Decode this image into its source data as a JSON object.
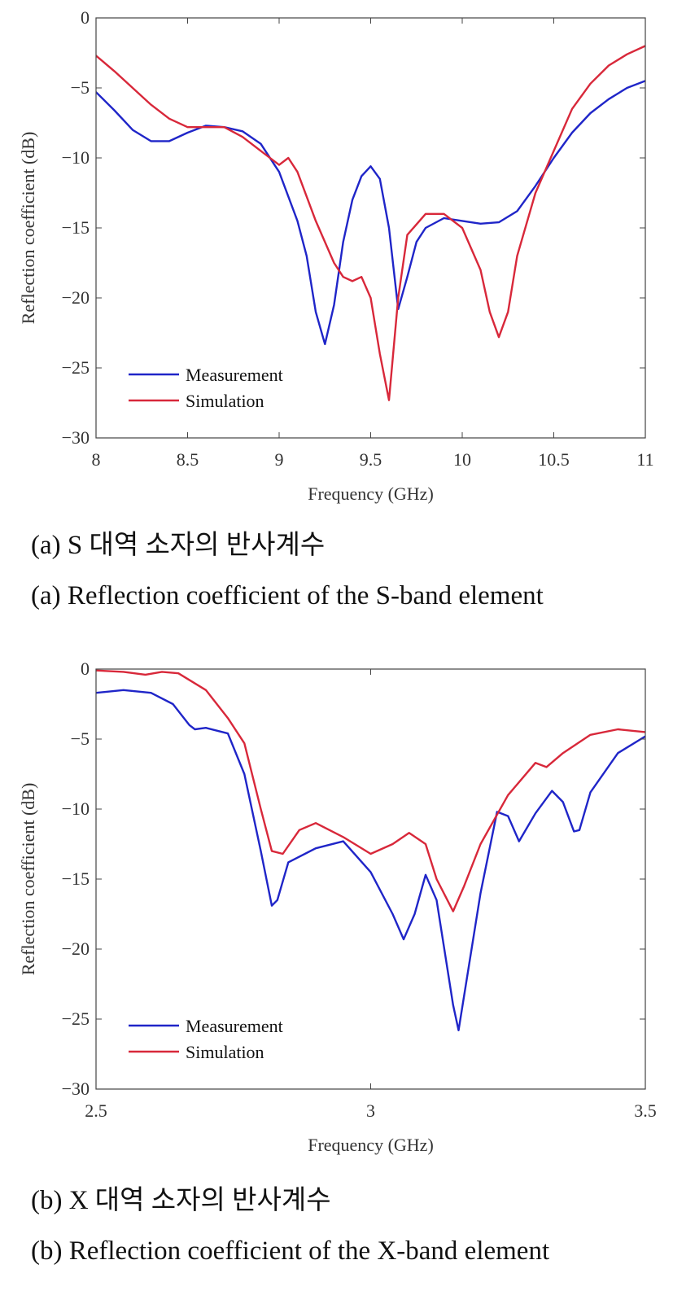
{
  "colors": {
    "measurement": "#1f25c8",
    "simulation": "#d8283a",
    "axis": "#444444"
  },
  "captions": {
    "a_ko": "(a) S 대역 소자의 반사계수",
    "a_en": "(a) Reflection coefficient of the S-band element",
    "b_ko": "(b) X 대역 소자의 반사계수",
    "b_en": "(b) Reflection coefficient of the X-band element"
  },
  "chart_data": [
    {
      "type": "line",
      "xlabel": "Frequency (GHz)",
      "ylabel": "Reflection coefficient (dB)",
      "xlim": [
        8,
        11
      ],
      "ylim": [
        -30,
        0
      ],
      "xticks": [
        8,
        8.5,
        9,
        9.5,
        10,
        10.5,
        11
      ],
      "xtick_labels": [
        "8",
        "8.5",
        "9",
        "9.5",
        "10",
        "10.5",
        "11"
      ],
      "yticks": [
        0,
        -5,
        -10,
        -15,
        -20,
        -25,
        -30
      ],
      "ytick_labels": [
        "0",
        "−5",
        "−10",
        "−15",
        "−20",
        "−25",
        "−30"
      ],
      "grid": false,
      "legend_position": "bottom-left",
      "series": [
        {
          "name": "Measurement",
          "x": [
            8.0,
            8.1,
            8.2,
            8.3,
            8.4,
            8.5,
            8.6,
            8.7,
            8.8,
            8.9,
            9.0,
            9.1,
            9.15,
            9.2,
            9.25,
            9.3,
            9.35,
            9.4,
            9.45,
            9.5,
            9.55,
            9.6,
            9.65,
            9.7,
            9.75,
            9.8,
            9.9,
            10.0,
            10.1,
            10.2,
            10.3,
            10.4,
            10.5,
            10.6,
            10.7,
            10.8,
            10.9,
            11.0
          ],
          "y": [
            -5.3,
            -6.6,
            -8.0,
            -8.8,
            -8.8,
            -8.2,
            -7.7,
            -7.8,
            -8.1,
            -9.0,
            -11.0,
            -14.5,
            -17.0,
            -21.0,
            -23.3,
            -20.5,
            -16.0,
            -13.0,
            -11.3,
            -10.6,
            -11.5,
            -15.0,
            -20.8,
            -18.5,
            -16.0,
            -15.0,
            -14.3,
            -14.5,
            -14.7,
            -14.6,
            -13.8,
            -12.0,
            -10.0,
            -8.2,
            -6.8,
            -5.8,
            -5.0,
            -4.5
          ]
        },
        {
          "name": "Simulation",
          "x": [
            8.0,
            8.1,
            8.2,
            8.3,
            8.4,
            8.5,
            8.6,
            8.7,
            8.8,
            8.9,
            9.0,
            9.05,
            9.1,
            9.2,
            9.3,
            9.35,
            9.4,
            9.45,
            9.5,
            9.55,
            9.6,
            9.65,
            9.7,
            9.8,
            9.9,
            10.0,
            10.1,
            10.15,
            10.2,
            10.25,
            10.3,
            10.4,
            10.5,
            10.6,
            10.7,
            10.8,
            10.9,
            11.0
          ],
          "y": [
            -2.7,
            -3.8,
            -5.0,
            -6.2,
            -7.2,
            -7.8,
            -7.8,
            -7.8,
            -8.5,
            -9.5,
            -10.5,
            -10.0,
            -11.0,
            -14.5,
            -17.5,
            -18.5,
            -18.8,
            -18.5,
            -20.0,
            -24.0,
            -27.3,
            -20.0,
            -15.5,
            -14.0,
            -14.0,
            -15.0,
            -18.0,
            -21.0,
            -22.8,
            -21.0,
            -17.0,
            -12.5,
            -9.5,
            -6.5,
            -4.7,
            -3.4,
            -2.6,
            -2.0
          ]
        }
      ]
    },
    {
      "type": "line",
      "xlabel": "Frequency (GHz)",
      "ylabel": "Reflection coefficient (dB)",
      "xlim": [
        2.5,
        3.5
      ],
      "ylim": [
        -30,
        0
      ],
      "xticks": [
        2.5,
        3,
        3.5
      ],
      "xtick_labels": [
        "2.5",
        "3",
        "3.5"
      ],
      "yticks": [
        0,
        -5,
        -10,
        -15,
        -20,
        -25,
        -30
      ],
      "ytick_labels": [
        "0",
        "−5",
        "−10",
        "−15",
        "−20",
        "−25",
        "−30"
      ],
      "grid": false,
      "legend_position": "bottom-left",
      "series": [
        {
          "name": "Measurement",
          "x": [
            2.5,
            2.55,
            2.6,
            2.64,
            2.67,
            2.68,
            2.7,
            2.74,
            2.77,
            2.8,
            2.82,
            2.83,
            2.85,
            2.9,
            2.95,
            3.0,
            3.04,
            3.06,
            3.08,
            3.1,
            3.12,
            3.15,
            3.16,
            3.2,
            3.23,
            3.25,
            3.27,
            3.3,
            3.33,
            3.35,
            3.37,
            3.38,
            3.4,
            3.45,
            3.5
          ],
          "y": [
            -1.7,
            -1.5,
            -1.7,
            -2.5,
            -4.0,
            -4.3,
            -4.2,
            -4.6,
            -7.5,
            -13.0,
            -16.9,
            -16.5,
            -13.8,
            -12.8,
            -12.3,
            -14.5,
            -17.5,
            -19.3,
            -17.5,
            -14.7,
            -16.5,
            -24.0,
            -25.8,
            -16.0,
            -10.2,
            -10.5,
            -12.3,
            -10.3,
            -8.7,
            -9.5,
            -11.6,
            -11.5,
            -8.8,
            -6.0,
            -4.8
          ]
        },
        {
          "name": "Simulation",
          "x": [
            2.5,
            2.55,
            2.59,
            2.62,
            2.65,
            2.7,
            2.74,
            2.77,
            2.8,
            2.82,
            2.84,
            2.87,
            2.9,
            2.95,
            3.0,
            3.04,
            3.07,
            3.1,
            3.12,
            3.15,
            3.17,
            3.2,
            3.25,
            3.3,
            3.32,
            3.35,
            3.4,
            3.45,
            3.5
          ],
          "y": [
            -0.1,
            -0.2,
            -0.4,
            -0.2,
            -0.3,
            -1.5,
            -3.5,
            -5.3,
            -10.0,
            -13.0,
            -13.2,
            -11.5,
            -11.0,
            -12.0,
            -13.2,
            -12.5,
            -11.7,
            -12.5,
            -15.0,
            -17.3,
            -15.5,
            -12.5,
            -9.0,
            -6.7,
            -7.0,
            -6.0,
            -4.7,
            -4.3,
            -4.5
          ]
        }
      ]
    }
  ]
}
